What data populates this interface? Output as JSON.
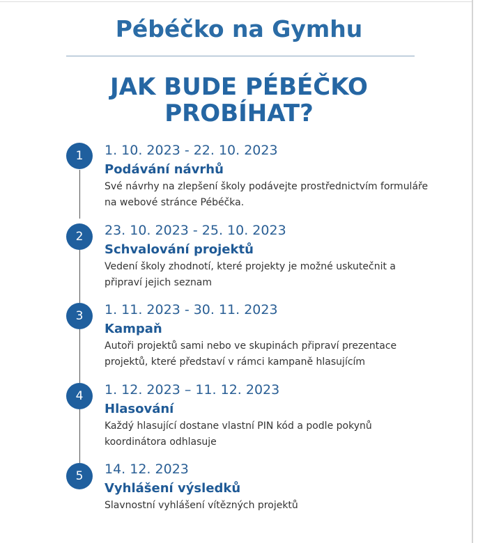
{
  "title": "Pébéčko na Gymhu",
  "heading_line1": "JAK BUDE PÉBÉČKO",
  "heading_line2": "PROBÍHAT?",
  "steps": [
    {
      "number": "1",
      "date": "1. 10. 2023 - 22. 10. 2023",
      "title": "Podávání návrhů",
      "desc": "Své návrhy na zlepšení školy podávejte prostřednictvím formuláře na webové stránce Pébéčka."
    },
    {
      "number": "2",
      "date": "23. 10. 2023 - 25. 10. 2023",
      "title": "Schvalování projektů",
      "desc": "Vedení školy zhodnotí, které projekty je možné uskutečnit a připraví jejich seznam"
    },
    {
      "number": "3",
      "date": "1. 11. 2023 - 30. 11. 2023",
      "title": "Kampaň",
      "desc": "Autoři projektů sami nebo ve skupinách připraví prezentace projektů, které představí v rámci kampaně hlasujícím"
    },
    {
      "number": "4",
      "date": "1. 12. 2023 – 11. 12. 2023",
      "title": "Hlasování",
      "desc": "Každý hlasující dostane vlastní PIN kód a podle pokynů koordinátora odhlasuje"
    },
    {
      "number": "5",
      "date": "14. 12. 2023",
      "title": "Vyhlášení výsledků",
      "desc": "Slavnostní vyhlášení vítězných projektů"
    }
  ],
  "colors": {
    "accent": "#2b6ca6",
    "circle": "#1f5f9e"
  }
}
